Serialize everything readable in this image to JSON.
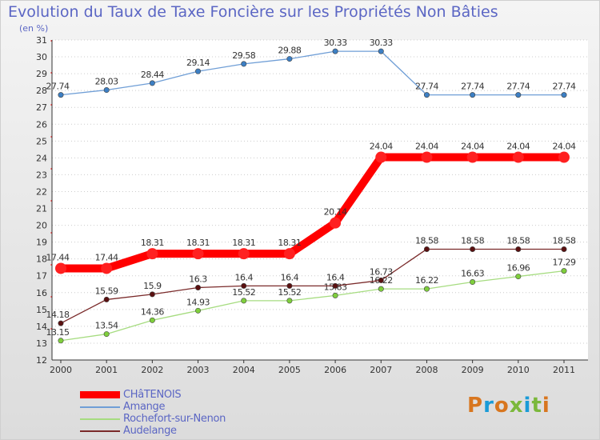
{
  "title": "Evolution du Taux de Taxe Foncière sur les Propriétés Non Bâties",
  "unit_label": "(en %)",
  "logo_text": "Proxiti",
  "chart_data": {
    "type": "line",
    "title": "Evolution du Taux de Taxe Foncière sur les Propriétés Non Bâties",
    "ylabel": "(en %)",
    "xlabel": "",
    "categories": [
      "2000",
      "2001",
      "2002",
      "2003",
      "2004",
      "2005",
      "2006",
      "2007",
      "2008",
      "2009",
      "2010",
      "2011"
    ],
    "ylim": [
      12,
      31
    ],
    "yticks": [
      "12",
      "13",
      "14",
      "15",
      "16",
      "17",
      "18",
      "19",
      "20",
      "21",
      "22",
      "23",
      "24",
      "25",
      "26",
      "27",
      "28",
      "29",
      "30",
      "31"
    ],
    "grid": "horizontal dotted",
    "legend_position": "bottom-left",
    "series": [
      {
        "name": "CHâTENOIS",
        "color": "#ff0000",
        "marker": "#ff2020",
        "values": [
          17.44,
          17.44,
          18.31,
          18.31,
          18.31,
          18.31,
          20.14,
          24.04,
          24.04,
          24.04,
          24.04,
          24.04
        ],
        "labels": [
          "17.44",
          "17.44",
          "18.31",
          "18.31",
          "18.31",
          "18.31",
          "20.14",
          "24.04",
          "24.04",
          "24.04",
          "24.04",
          "24.04"
        ]
      },
      {
        "name": "Amange",
        "color": "#6f9ed6",
        "marker": "#3c7fc4",
        "values": [
          27.74,
          28.03,
          28.44,
          29.14,
          29.58,
          29.88,
          30.33,
          30.33,
          27.74,
          27.74,
          27.74,
          27.74
        ],
        "labels": [
          "27.74",
          "28.03",
          "28.44",
          "29.14",
          "29.58",
          "29.88",
          "30.33",
          "30.33",
          "27.74",
          "27.74",
          "27.74",
          "27.74"
        ]
      },
      {
        "name": "Rochefort-sur-Nenon",
        "color": "#a6dc80",
        "marker": "#7fcf3c",
        "values": [
          13.15,
          13.54,
          14.36,
          14.93,
          15.52,
          15.52,
          15.83,
          16.22,
          16.22,
          16.63,
          16.96,
          17.29
        ],
        "labels": [
          "13.15",
          "13.54",
          "14.36",
          "14.93",
          "15.52",
          "15.52",
          "15.83",
          "16.22",
          "16.22",
          "16.63",
          "16.96",
          "17.29"
        ]
      },
      {
        "name": "Audelange",
        "color": "#7a2a2a",
        "marker": "#5a1010",
        "values": [
          14.18,
          15.59,
          15.9,
          16.3,
          16.4,
          16.4,
          16.4,
          16.73,
          18.58,
          18.58,
          18.58,
          18.58
        ],
        "labels": [
          "14.18",
          "15.59",
          "15.9",
          "16.3",
          "16.4",
          "16.4",
          "16.4",
          "16.73",
          "18.58",
          "18.58",
          "18.58",
          "18.58"
        ]
      }
    ]
  }
}
